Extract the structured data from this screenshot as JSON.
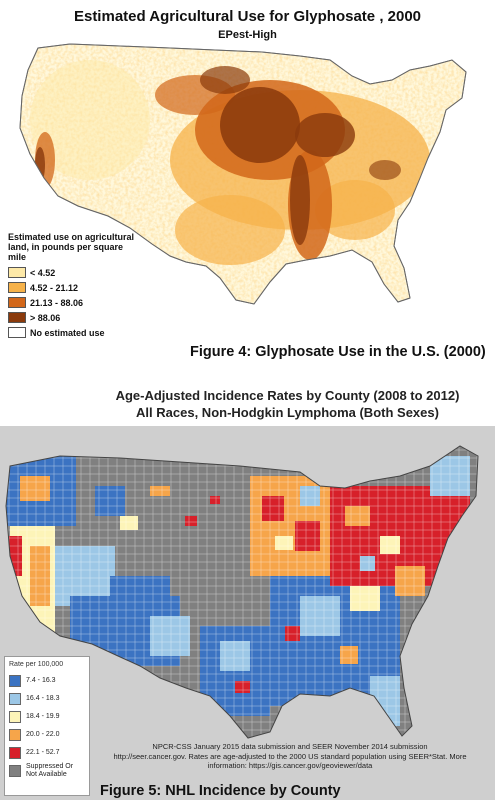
{
  "figure4": {
    "title": "Estimated Agricultural Use for Glyphosate , 2000",
    "subtitle": "EPest-High",
    "legend": {
      "title": "Estimated use on agricultural land, in pounds per square mile",
      "items": [
        {
          "label": "< 4.52",
          "color": "#fde9a8"
        },
        {
          "label": "4.52 - 21.12",
          "color": "#f6b24a"
        },
        {
          "label": "21.13 - 88.06",
          "color": "#d2671a"
        },
        {
          "label": "> 88.06",
          "color": "#8a3a0c"
        },
        {
          "label": "No estimated use",
          "color": "#ffffff"
        }
      ]
    },
    "caption": "Figure 4: Glyphosate Use in the U.S. (2000)"
  },
  "figure5": {
    "title_line1": "Age-Adjusted Incidence Rates by County (2008 to 2012)",
    "title_line2": "All Races, Non-Hodgkin Lymphoma (Both Sexes)",
    "legend": {
      "title": "Rate per 100,000",
      "items": [
        {
          "label": "7.4 - 16.3",
          "color": "#3b73c2"
        },
        {
          "label": "16.4 - 18.3",
          "color": "#9cc7e6"
        },
        {
          "label": "18.4 - 19.9",
          "color": "#fdf4b8"
        },
        {
          "label": "20.0 - 22.0",
          "color": "#f6a54a"
        },
        {
          "label": "22.1 - 52.7",
          "color": "#d7202a"
        },
        {
          "label": "Suppressed Or Not Available",
          "color": "#808080"
        }
      ]
    },
    "source_line1": "NPCR-CSS January 2015 data submission and SEER November 2014 submission",
    "source_line2": "http://seer.cancer.gov. Rates are age-adjusted to the 2000 US standard population using SEER*Stat.  More",
    "source_line3": "information: https://gis.cancer.gov/geoviewer/data",
    "caption": "Figure 5: NHL Incidence by County"
  }
}
